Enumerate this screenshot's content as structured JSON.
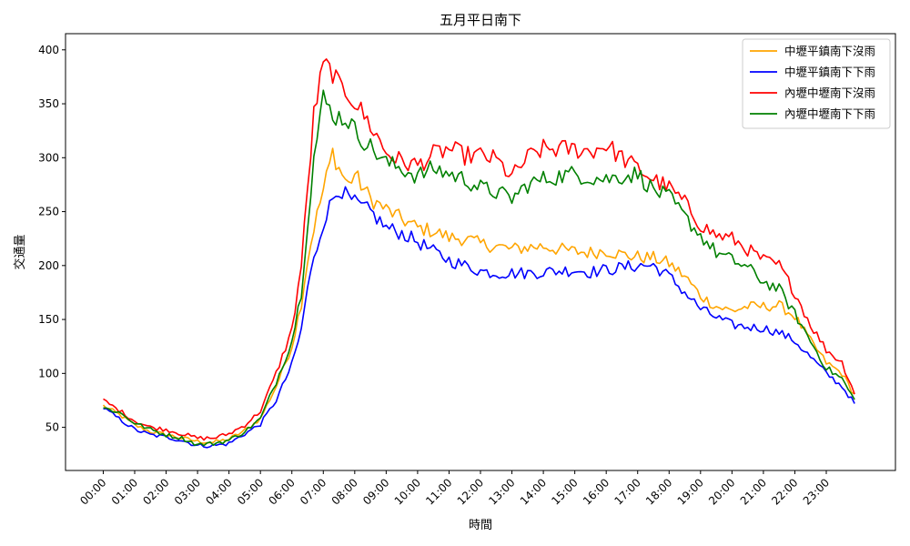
{
  "chart_data": {
    "type": "line",
    "title": "五月平日南下",
    "xlabel": "時間",
    "ylabel": "交通量",
    "xlim": [
      -1.2,
      25.2
    ],
    "ylim": [
      10,
      415
    ],
    "x_unit": "hour",
    "sample_step_hours": 0.1,
    "x_start": 0.0,
    "categories": [
      "00:00",
      "01:00",
      "02:00",
      "03:00",
      "04:00",
      "05:00",
      "06:00",
      "07:00",
      "08:00",
      "09:00",
      "10:00",
      "11:00",
      "12:00",
      "13:00",
      "14:00",
      "15:00",
      "16:00",
      "17:00",
      "18:00",
      "19:00",
      "20:00",
      "21:00",
      "22:00",
      "23:00"
    ],
    "yticks": [
      50,
      100,
      150,
      200,
      250,
      300,
      350,
      400
    ],
    "grid": false,
    "legend_position": "top-right",
    "series": [
      {
        "name": "中壢平鎮南下沒雨",
        "color": "#ffa500",
        "anchors": [
          [
            0,
            70
          ],
          [
            0.5,
            62
          ],
          [
            1,
            52
          ],
          [
            1.5,
            46
          ],
          [
            2,
            43
          ],
          [
            2.5,
            40
          ],
          [
            3,
            37
          ],
          [
            3.5,
            36
          ],
          [
            4,
            39
          ],
          [
            4.5,
            47
          ],
          [
            5,
            58
          ],
          [
            5.5,
            88
          ],
          [
            6,
            125
          ],
          [
            6.3,
            165
          ],
          [
            6.5,
            205
          ],
          [
            6.7,
            235
          ],
          [
            7,
            270
          ],
          [
            7.3,
            305
          ],
          [
            7.5,
            290
          ],
          [
            7.8,
            275
          ],
          [
            8,
            285
          ],
          [
            8.2,
            275
          ],
          [
            8.5,
            262
          ],
          [
            9,
            252
          ],
          [
            9.5,
            243
          ],
          [
            10,
            235
          ],
          [
            10.5,
            232
          ],
          [
            11,
            226
          ],
          [
            11.5,
            225
          ],
          [
            12,
            220
          ],
          [
            12.5,
            218
          ],
          [
            13,
            215
          ],
          [
            13.5,
            217
          ],
          [
            14,
            218
          ],
          [
            14.5,
            215
          ],
          [
            15,
            213
          ],
          [
            15.5,
            212
          ],
          [
            16,
            214
          ],
          [
            16.5,
            210
          ],
          [
            17,
            208
          ],
          [
            17.5,
            207
          ],
          [
            18,
            202
          ],
          [
            18.5,
            190
          ],
          [
            19,
            172
          ],
          [
            19.5,
            162
          ],
          [
            20,
            158
          ],
          [
            20.5,
            162
          ],
          [
            21,
            162
          ],
          [
            21.5,
            163
          ],
          [
            22,
            153
          ],
          [
            22.5,
            130
          ],
          [
            23,
            110
          ],
          [
            23.5,
            100
          ],
          [
            23.9,
            80
          ]
        ]
      },
      {
        "name": "中壢平鎮南下下雨",
        "color": "#0000ff",
        "anchors": [
          [
            0,
            68
          ],
          [
            0.5,
            58
          ],
          [
            1,
            48
          ],
          [
            1.5,
            43
          ],
          [
            2,
            41
          ],
          [
            2.5,
            38
          ],
          [
            3,
            33
          ],
          [
            3.5,
            33
          ],
          [
            4,
            35
          ],
          [
            4.5,
            44
          ],
          [
            5,
            53
          ],
          [
            5.5,
            75
          ],
          [
            6,
            108
          ],
          [
            6.3,
            140
          ],
          [
            6.5,
            180
          ],
          [
            6.7,
            205
          ],
          [
            7,
            240
          ],
          [
            7.3,
            262
          ],
          [
            7.5,
            272
          ],
          [
            7.8,
            262
          ],
          [
            8,
            258
          ],
          [
            8.5,
            250
          ],
          [
            9,
            235
          ],
          [
            9.5,
            230
          ],
          [
            10,
            222
          ],
          [
            10.5,
            213
          ],
          [
            11,
            205
          ],
          [
            11.5,
            200
          ],
          [
            12,
            195
          ],
          [
            12.5,
            193
          ],
          [
            13,
            193
          ],
          [
            13.5,
            193
          ],
          [
            14,
            194
          ],
          [
            14.5,
            195
          ],
          [
            15,
            196
          ],
          [
            15.5,
            194
          ],
          [
            16,
            196
          ],
          [
            16.5,
            198
          ],
          [
            17,
            200
          ],
          [
            17.5,
            200
          ],
          [
            18,
            190
          ],
          [
            18.5,
            175
          ],
          [
            19,
            160
          ],
          [
            19.5,
            152
          ],
          [
            20,
            145
          ],
          [
            20.5,
            143
          ],
          [
            21,
            142
          ],
          [
            21.5,
            138
          ],
          [
            22,
            130
          ],
          [
            22.5,
            115
          ],
          [
            23,
            100
          ],
          [
            23.5,
            88
          ],
          [
            23.9,
            72
          ]
        ]
      },
      {
        "name": "內壢中壢南下沒雨",
        "color": "#ff0000",
        "anchors": [
          [
            0,
            75
          ],
          [
            0.5,
            66
          ],
          [
            1,
            56
          ],
          [
            1.5,
            50
          ],
          [
            2,
            48
          ],
          [
            2.5,
            44
          ],
          [
            3,
            40
          ],
          [
            3.5,
            40
          ],
          [
            4,
            44
          ],
          [
            4.5,
            52
          ],
          [
            5,
            65
          ],
          [
            5.5,
            100
          ],
          [
            6,
            140
          ],
          [
            6.3,
            200
          ],
          [
            6.5,
            270
          ],
          [
            6.7,
            340
          ],
          [
            7,
            385
          ],
          [
            7.3,
            380
          ],
          [
            7.5,
            365
          ],
          [
            7.8,
            360
          ],
          [
            8,
            352
          ],
          [
            8.5,
            330
          ],
          [
            9,
            305
          ],
          [
            9.5,
            296
          ],
          [
            10,
            293
          ],
          [
            10.5,
            303
          ],
          [
            11,
            308
          ],
          [
            11.5,
            302
          ],
          [
            12,
            302
          ],
          [
            12.5,
            298
          ],
          [
            13,
            282
          ],
          [
            13.5,
            300
          ],
          [
            14,
            308
          ],
          [
            14.5,
            308
          ],
          [
            15,
            308
          ],
          [
            15.5,
            306
          ],
          [
            16,
            312
          ],
          [
            16.5,
            300
          ],
          [
            17,
            290
          ],
          [
            17.5,
            280
          ],
          [
            18,
            272
          ],
          [
            18.5,
            258
          ],
          [
            19,
            238
          ],
          [
            19.5,
            228
          ],
          [
            20,
            225
          ],
          [
            20.5,
            215
          ],
          [
            21,
            205
          ],
          [
            21.5,
            200
          ],
          [
            22,
            175
          ],
          [
            22.5,
            145
          ],
          [
            23,
            122
          ],
          [
            23.5,
            110
          ],
          [
            23.9,
            82
          ]
        ]
      },
      {
        "name": "內壢中壢南下下雨",
        "color": "#008000",
        "anchors": [
          [
            0,
            68
          ],
          [
            0.5,
            64
          ],
          [
            1,
            54
          ],
          [
            1.5,
            48
          ],
          [
            2,
            43
          ],
          [
            2.5,
            40
          ],
          [
            3,
            34
          ],
          [
            3.5,
            35
          ],
          [
            4,
            38
          ],
          [
            4.5,
            46
          ],
          [
            5,
            58
          ],
          [
            5.5,
            92
          ],
          [
            6,
            130
          ],
          [
            6.3,
            175
          ],
          [
            6.5,
            240
          ],
          [
            6.7,
            300
          ],
          [
            7,
            355
          ],
          [
            7.3,
            340
          ],
          [
            7.5,
            338
          ],
          [
            7.8,
            335
          ],
          [
            8,
            325
          ],
          [
            8.5,
            310
          ],
          [
            9,
            295
          ],
          [
            9.5,
            290
          ],
          [
            10,
            283
          ],
          [
            10.5,
            290
          ],
          [
            11,
            285
          ],
          [
            11.5,
            280
          ],
          [
            12,
            272
          ],
          [
            12.5,
            268
          ],
          [
            13,
            262
          ],
          [
            13.5,
            275
          ],
          [
            14,
            280
          ],
          [
            14.5,
            283
          ],
          [
            15,
            285
          ],
          [
            15.5,
            282
          ],
          [
            16,
            280
          ],
          [
            16.5,
            283
          ],
          [
            17,
            285
          ],
          [
            17.5,
            270
          ],
          [
            18,
            263
          ],
          [
            18.5,
            245
          ],
          [
            19,
            228
          ],
          [
            19.5,
            212
          ],
          [
            20,
            205
          ],
          [
            20.5,
            198
          ],
          [
            21,
            185
          ],
          [
            21.5,
            178
          ],
          [
            22,
            155
          ],
          [
            22.5,
            130
          ],
          [
            23,
            105
          ],
          [
            23.5,
            95
          ],
          [
            23.9,
            75
          ]
        ]
      }
    ]
  }
}
